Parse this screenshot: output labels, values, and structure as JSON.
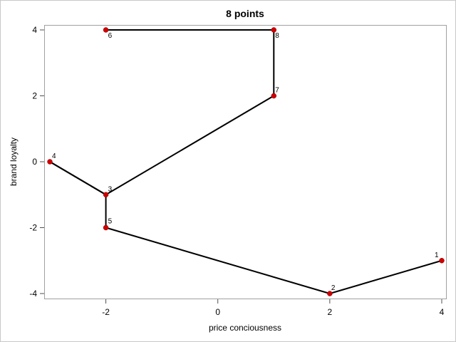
{
  "chart_data": {
    "type": "line",
    "title": "8 points",
    "xlabel": "price conciousness",
    "ylabel": "brand loyalty",
    "xlim": [
      -3,
      4
    ],
    "ylim": [
      -4,
      4
    ],
    "x_ticks": [
      "-2",
      "0",
      "2",
      "4"
    ],
    "y_ticks": [
      "4",
      "2",
      "0",
      "-2",
      "-4"
    ],
    "grid": false,
    "legend": "none",
    "line_color": "#000000",
    "marker_color": "#cc0000",
    "points": [
      {
        "label": "1",
        "x": 4,
        "y": -3
      },
      {
        "label": "2",
        "x": 2,
        "y": -4
      },
      {
        "label": "5",
        "x": -2,
        "y": -2
      },
      {
        "label": "3",
        "x": -2,
        "y": -1
      },
      {
        "label": "4",
        "x": -3,
        "y": 0
      },
      {
        "label": "3",
        "x": -2,
        "y": -1
      },
      {
        "label": "7",
        "x": 1,
        "y": 2
      },
      {
        "label": "8",
        "x": 1,
        "y": 4
      },
      {
        "label": "6",
        "x": -2,
        "y": 4
      }
    ]
  }
}
